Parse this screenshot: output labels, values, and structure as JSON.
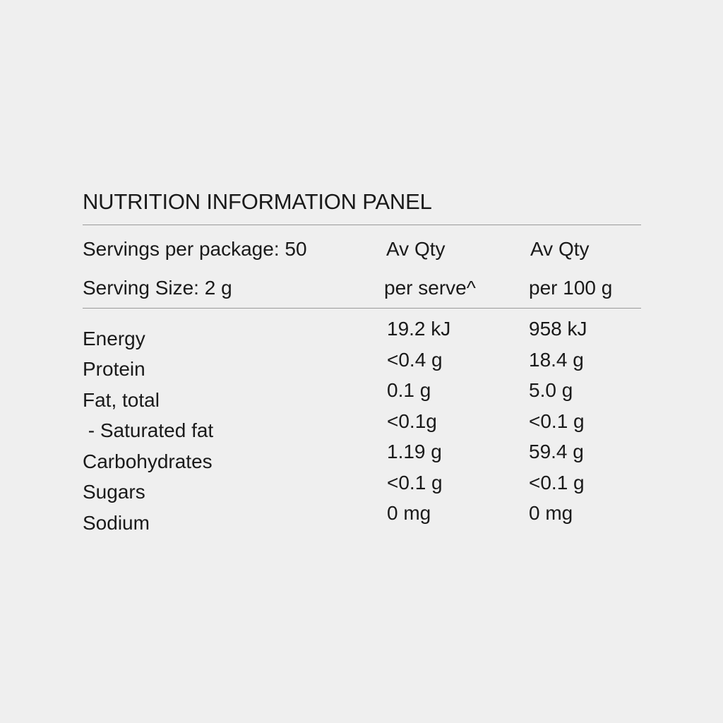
{
  "title": "NUTRITION INFORMATION PANEL",
  "header": {
    "servings_per_package": "Servings per package: 50",
    "serving_size": "Serving Size: 2 g",
    "col1_line1": "Av Qty",
    "col1_line2": "per serve^",
    "col2_line1": "Av Qty",
    "col2_line2": "per 100 g"
  },
  "rows": [
    {
      "name": "Energy",
      "per_serve": "19.2 kJ",
      "per_100g": "958 kJ"
    },
    {
      "name": "Protein",
      "per_serve": "<0.4 g",
      "per_100g": "18.4 g"
    },
    {
      "name": "Fat, total",
      "per_serve": "0.1 g",
      "per_100g": "5.0 g"
    },
    {
      "name": " - Saturated fat",
      "per_serve": "<0.1g",
      "per_100g": "<0.1 g"
    },
    {
      "name": "Carbohydrates",
      "per_serve": "1.19 g",
      "per_100g": "59.4 g"
    },
    {
      "name": "Sugars",
      "per_serve": "<0.1 g",
      "per_100g": "<0.1 g"
    },
    {
      "name": "Sodium",
      "per_serve": "0 mg",
      "per_100g": "0 mg"
    }
  ]
}
